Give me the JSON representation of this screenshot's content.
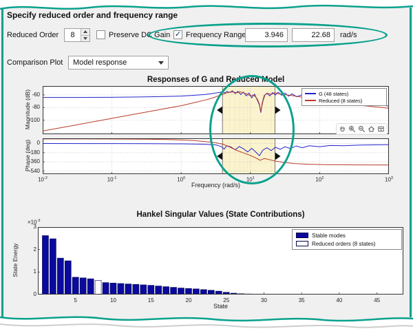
{
  "colors": {
    "frame": "#0aa18d",
    "annotation": "#0aa18d",
    "panel_bg": "#f0f0f0",
    "g_line": "#2323cc",
    "reduced_line": "#b93a26",
    "bar_fill": "#0a0a9e",
    "band_fill": "#faf3cd"
  },
  "header": {
    "title": "Specify reduced order and frequency range"
  },
  "controls": {
    "reduced_order": {
      "label": "Reduced Order",
      "value": "8"
    },
    "preserve_dc": {
      "label": "Preserve DC Gain",
      "checked": false
    },
    "frequency_range": {
      "label": "Frequency Range",
      "checked": true,
      "min": "3.946",
      "max": "22.68",
      "unit": "rad/s"
    },
    "comparison_plot": {
      "label": "Comparison Plot",
      "value": "Model response"
    }
  },
  "toolbar": {
    "icons": [
      "pan",
      "zoom-in",
      "zoom-out",
      "restore-view",
      "export"
    ]
  },
  "chart_data": [
    {
      "id": "bode",
      "type": "line",
      "title": "Responses of G and Reduced Model",
      "xlabel": "Frequency  (rad/s)",
      "xscale": "log10",
      "xlim": [
        -2,
        3
      ],
      "xtick_exponents": [
        -2,
        -1,
        0,
        1,
        2,
        3
      ],
      "grid_log10": [
        -1,
        0,
        1,
        2
      ],
      "band": {
        "from_radps": 3.946,
        "to_radps": 22.68,
        "from_log10": 0.596,
        "to_log10": 1.356,
        "fill": "#faf3cd"
      },
      "band_minor_log10": [
        0.699,
        0.778,
        0.845,
        0.903,
        0.954,
        1.0,
        1.301
      ],
      "legend": [
        {
          "label": "G (48 states)",
          "color": "#2323cc"
        },
        {
          "label": "Reduced (8 states)",
          "color": "#b93a26"
        }
      ],
      "subplots": [
        {
          "ylabel": "Magnitude (dB)",
          "ylim": [
            -122,
            -46
          ],
          "yticks": [
            -60,
            -80,
            -100
          ],
          "series": [
            {
              "name": "G (48 states)",
              "color": "#2323cc",
              "points": [
                [
                  -2,
                  -64
                ],
                [
                  -1.5,
                  -64
                ],
                [
                  -1,
                  -63.8
                ],
                [
                  -0.6,
                  -63.3
                ],
                [
                  -0.3,
                  -62.7
                ],
                [
                  0,
                  -61.8
                ],
                [
                  0.2,
                  -60.6
                ],
                [
                  0.35,
                  -59.2
                ],
                [
                  0.45,
                  -57.8
                ],
                [
                  0.55,
                  -56.2
                ],
                [
                  0.6,
                  -55.4
                ],
                [
                  0.63,
                  -57
                ],
                [
                  0.66,
                  -54.6
                ],
                [
                  0.7,
                  -56.2
                ],
                [
                  0.74,
                  -53.6
                ],
                [
                  0.78,
                  -57.8
                ],
                [
                  0.82,
                  -54.4
                ],
                [
                  0.86,
                  -59.4
                ],
                [
                  0.9,
                  -55.6
                ],
                [
                  0.94,
                  -61.6
                ],
                [
                  0.98,
                  -57.2
                ],
                [
                  1.02,
                  -64.6
                ],
                [
                  1.06,
                  -58.8
                ],
                [
                  1.1,
                  -68.5
                ],
                [
                  1.13,
                  -76
                ],
                [
                  1.15,
                  -88
                ],
                [
                  1.17,
                  -73
                ],
                [
                  1.2,
                  -61
                ],
                [
                  1.24,
                  -57.4
                ],
                [
                  1.28,
                  -61.6
                ],
                [
                  1.32,
                  -56.4
                ],
                [
                  1.36,
                  -60
                ],
                [
                  1.4,
                  -55.8
                ],
                [
                  1.45,
                  -60.6
                ],
                [
                  1.5,
                  -57
                ],
                [
                  1.55,
                  -62
                ],
                [
                  1.6,
                  -58.4
                ],
                [
                  1.67,
                  -63
                ],
                [
                  1.74,
                  -60
                ],
                [
                  1.82,
                  -64
                ],
                [
                  1.9,
                  -62
                ],
                [
                  2,
                  -65
                ],
                [
                  2.1,
                  -67
                ],
                [
                  2.25,
                  -69
                ],
                [
                  2.4,
                  -71
                ],
                [
                  2.6,
                  -73.5
                ],
                [
                  2.8,
                  -75.5
                ],
                [
                  3,
                  -77.5
                ]
              ]
            },
            {
              "name": "Reduced (8 states)",
              "color": "#b93a26",
              "points": [
                [
                  -2,
                  -117
                ],
                [
                  -1.5,
                  -107
                ],
                [
                  -1,
                  -97
                ],
                [
                  -0.5,
                  -87
                ],
                [
                  -0.2,
                  -81
                ],
                [
                  0,
                  -77
                ],
                [
                  0.2,
                  -72
                ],
                [
                  0.35,
                  -68
                ],
                [
                  0.45,
                  -65
                ],
                [
                  0.55,
                  -61
                ],
                [
                  0.6,
                  -59
                ],
                [
                  0.65,
                  -57
                ],
                [
                  0.7,
                  -55.9
                ],
                [
                  0.75,
                  -55.3
                ],
                [
                  0.8,
                  -56.6
                ],
                [
                  0.85,
                  -55.1
                ],
                [
                  0.9,
                  -56.6
                ],
                [
                  0.95,
                  -58.6
                ],
                [
                  1,
                  -61.6
                ],
                [
                  1.05,
                  -60.1
                ],
                [
                  1.1,
                  -66.6
                ],
                [
                  1.13,
                  -74.5
                ],
                [
                  1.15,
                  -86
                ],
                [
                  1.18,
                  -70.5
                ],
                [
                  1.21,
                  -60.2
                ],
                [
                  1.25,
                  -57.6
                ],
                [
                  1.3,
                  -59.1
                ],
                [
                  1.35,
                  -56.6
                ],
                [
                  1.4,
                  -58.1
                ],
                [
                  1.5,
                  -59.6
                ],
                [
                  1.6,
                  -61.1
                ],
                [
                  1.75,
                  -63.6
                ],
                [
                  1.9,
                  -66.1
                ],
                [
                  2.1,
                  -69.6
                ],
                [
                  2.3,
                  -72.6
                ],
                [
                  2.6,
                  -76.6
                ],
                [
                  3,
                  -81
                ]
              ]
            }
          ]
        },
        {
          "ylabel": "Phase (deg)",
          "ylim": [
            -600,
            100
          ],
          "yticks": [
            0,
            -180,
            -360,
            -540
          ],
          "series": [
            {
              "name": "G (48 states)",
              "color": "#2323cc",
              "points": [
                [
                  -2,
                  -1
                ],
                [
                  -1,
                  -2
                ],
                [
                  -0.5,
                  -4
                ],
                [
                  0,
                  -8
                ],
                [
                  0.3,
                  -15
                ],
                [
                  0.5,
                  -28
                ],
                [
                  0.58,
                  -60
                ],
                [
                  0.62,
                  -110
                ],
                [
                  0.66,
                  -45
                ],
                [
                  0.72,
                  -70
                ],
                [
                  0.78,
                  -125
                ],
                [
                  0.84,
                  -60
                ],
                [
                  0.9,
                  -105
                ],
                [
                  0.96,
                  -165
                ],
                [
                  1.02,
                  -95
                ],
                [
                  1.08,
                  -170
                ],
                [
                  1.13,
                  -240
                ],
                [
                  1.18,
                  -130
                ],
                [
                  1.24,
                  -85
                ],
                [
                  1.3,
                  -140
                ],
                [
                  1.36,
                  -75
                ],
                [
                  1.43,
                  -115
                ],
                [
                  1.5,
                  -65
                ],
                [
                  1.58,
                  -100
                ],
                [
                  1.66,
                  -50
                ],
                [
                  1.75,
                  -85
                ],
                [
                  1.85,
                  -45
                ],
                [
                  2,
                  -65
                ],
                [
                  2.15,
                  -40
                ],
                [
                  2.35,
                  -45
                ],
                [
                  2.6,
                  -30
                ],
                [
                  3,
                  -25
                ]
              ]
            },
            {
              "name": "Reduced (8 states)",
              "color": "#b93a26",
              "points": [
                [
                  -2,
                  88
                ],
                [
                  -1.5,
                  88
                ],
                [
                  -1,
                  86
                ],
                [
                  -0.5,
                  82
                ],
                [
                  -0.2,
                  76
                ],
                [
                  0,
                  68
                ],
                [
                  0.2,
                  54
                ],
                [
                  0.35,
                  36
                ],
                [
                  0.5,
                  12
                ],
                [
                  0.6,
                  -15
                ],
                [
                  0.7,
                  -70
                ],
                [
                  0.8,
                  -135
                ],
                [
                  0.9,
                  -185
                ],
                [
                  1,
                  -235
                ],
                [
                  1.08,
                  -285
                ],
                [
                  1.14,
                  -330
                ],
                [
                  1.2,
                  -295
                ],
                [
                  1.28,
                  -320
                ],
                [
                  1.38,
                  -350
                ],
                [
                  1.5,
                  -375
                ],
                [
                  1.65,
                  -395
                ],
                [
                  1.85,
                  -408
                ],
                [
                  2.1,
                  -415
                ],
                [
                  2.5,
                  -420
                ],
                [
                  3,
                  -422
                ]
              ]
            }
          ]
        }
      ]
    },
    {
      "id": "hankel",
      "type": "bar",
      "title": "Hankel Singular Values (State Contributions)",
      "xlabel": "State",
      "ylabel": "State Energy",
      "multiplier": {
        "base": "×10",
        "exp": "-3"
      },
      "xlim": [
        0,
        48.5
      ],
      "xticks": [
        5,
        10,
        15,
        20,
        25,
        30,
        35,
        40,
        45
      ],
      "ylim": [
        0,
        3
      ],
      "yticks": [
        0,
        1,
        2,
        3
      ],
      "bar_color": "#0a0a9e",
      "highlight_state": 8,
      "legend": [
        {
          "label": "Stable modes",
          "fill": "#0a0a9e"
        },
        {
          "label": "Reduced orders (8 states)",
          "fill": "#ffffff"
        }
      ],
      "values": [
        2.62,
        2.48,
        1.62,
        1.5,
        0.77,
        0.74,
        0.7,
        0.63,
        0.53,
        0.51,
        0.49,
        0.47,
        0.45,
        0.43,
        0.41,
        0.38,
        0.35,
        0.32,
        0.29,
        0.27,
        0.25,
        0.22,
        0.19,
        0.15,
        0.1,
        0.06,
        0.035,
        0.025,
        0.02,
        0.016,
        0.013,
        0.011,
        0.009,
        0.008,
        0.007,
        0.006,
        0.005,
        0.005,
        0.004,
        0.004,
        0.003,
        0.003,
        0.003,
        0.002,
        0.002,
        0.002,
        0.002,
        0.002
      ]
    }
  ]
}
